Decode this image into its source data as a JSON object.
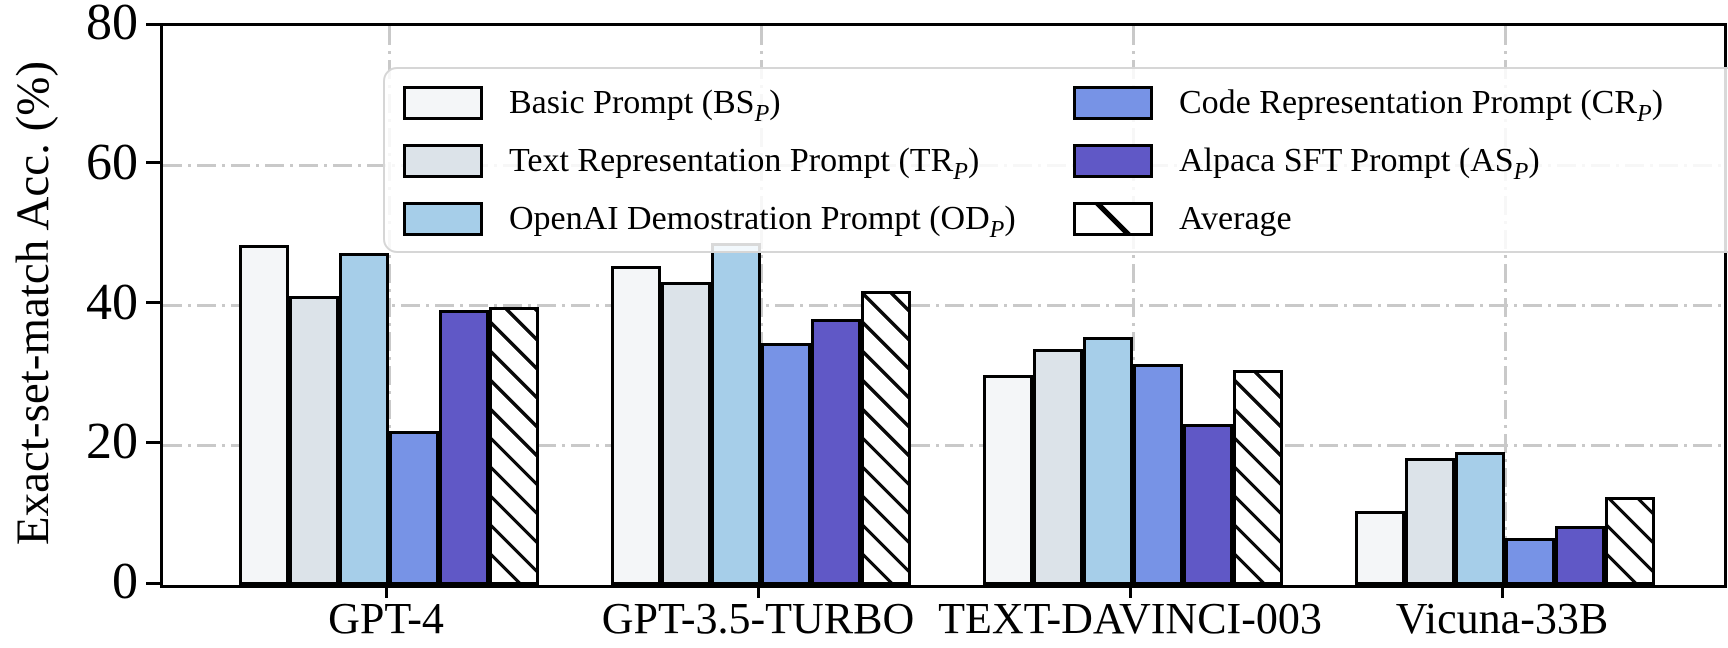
{
  "figure": {
    "background_color": "#ffffff",
    "axis_color": "#000000",
    "gridline_color": "#c9c9c9",
    "gridline_style": "dash-dot",
    "bar_edge_color": "#000000"
  },
  "chart_data": {
    "type": "bar",
    "title": "",
    "xlabel": "",
    "ylabel": "Exact-set-match Acc. (%)",
    "ylim": [
      0,
      80
    ],
    "yticks": [
      0,
      20,
      40,
      60,
      80
    ],
    "grid": {
      "horizontal_lines_at": [
        20,
        40,
        60
      ],
      "vertical_lines_at": "each category center",
      "style": "dash-dot",
      "color": "#c9c9c9"
    },
    "legend_position": "upper center inside axes, 2 columns",
    "categories": [
      "GPT-4",
      "GPT-3.5-TURBO",
      "TEXT-DAVINCI-003",
      "Vicuna-33B"
    ],
    "series": [
      {
        "name": "Basic Prompt (BS_P)",
        "legend": {
          "prefix": "Basic Prompt (BS",
          "subscript": "P",
          "suffix": ")"
        },
        "color": "#f4f6f8",
        "hatch": null,
        "values": [
          48.6,
          45.7,
          30.0,
          10.6
        ]
      },
      {
        "name": "Text Representation Prompt (TR_P)",
        "legend": {
          "prefix": "Text Representation Prompt (TR",
          "subscript": "P",
          "suffix": ")"
        },
        "color": "#dce3e9",
        "hatch": null,
        "values": [
          41.4,
          43.3,
          33.8,
          18.2
        ]
      },
      {
        "name": "OpenAI Demostration Prompt (OD_P)",
        "legend": {
          "prefix": "OpenAI Demostration Prompt (OD",
          "subscript": "P",
          "suffix": ")"
        },
        "color": "#a6cee9",
        "hatch": null,
        "values": [
          47.5,
          48.9,
          35.5,
          19.0
        ]
      },
      {
        "name": "Code Representation Prompt (CR_P)",
        "legend": {
          "prefix": "Code Representation Prompt (CR",
          "subscript": "P",
          "suffix": ")"
        },
        "color": "#7793e6",
        "hatch": null,
        "values": [
          22.0,
          34.7,
          31.7,
          6.8
        ]
      },
      {
        "name": "Alpaca SFT Prompt (AS_P)",
        "legend": {
          "prefix": "Alpaca SFT Prompt (AS",
          "subscript": "P",
          "suffix": ")"
        },
        "color": "#6058c6",
        "hatch": null,
        "values": [
          39.4,
          38.1,
          23.1,
          8.5
        ]
      },
      {
        "name": "Average",
        "legend": {
          "prefix": "Average",
          "subscript": "",
          "suffix": ""
        },
        "color": "#ffffff",
        "hatch": "/",
        "values": [
          39.8,
          42.1,
          30.8,
          12.6
        ]
      }
    ],
    "legend_columns": [
      [
        0,
        1,
        2
      ],
      [
        3,
        4,
        5
      ]
    ]
  }
}
